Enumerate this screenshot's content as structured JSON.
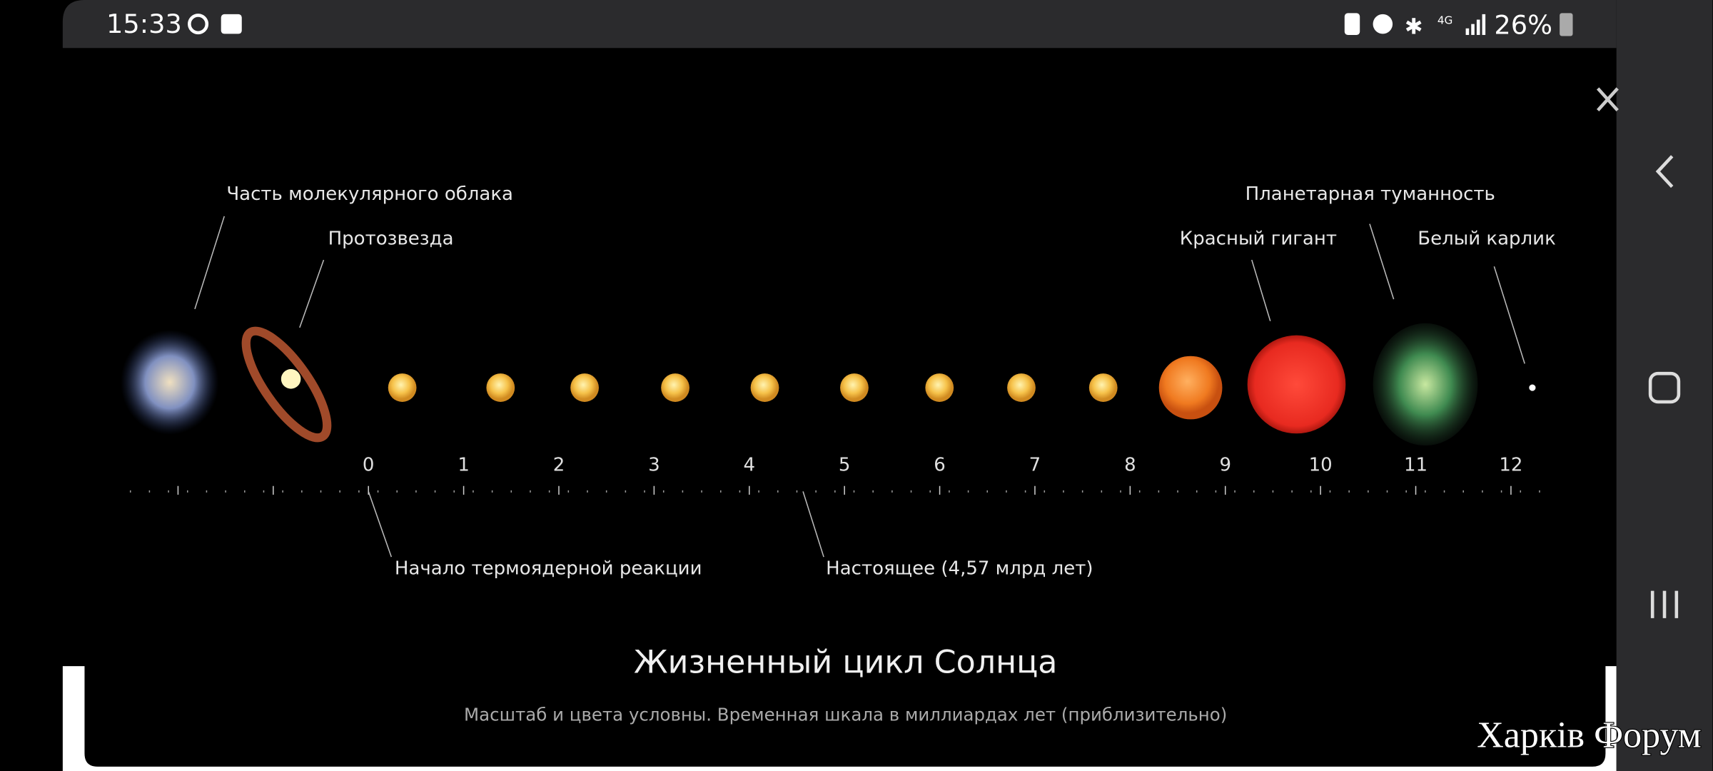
{
  "status_bar": {
    "time": "15:33",
    "battery": "26%"
  },
  "diagram": {
    "labels_top": [
      "Часть молекулярного облака",
      "Протозвезда",
      "Планетарная туманность",
      "Красный гигант",
      "Белый карлик"
    ],
    "labels_bottom": [
      "Начало термоядерной реакции",
      "Настоящее (4,57 млрд лет)"
    ],
    "timeline": [
      "0",
      "1",
      "2",
      "3",
      "4",
      "5",
      "6",
      "7",
      "8",
      "9",
      "10",
      "11",
      "12"
    ],
    "title": "Жизненный цикл Солнца",
    "subtitle": "Масштаб и цвета условны. Временная шкала в миллиардах лет (приблизительно)"
  },
  "watermark": "Харків Форум"
}
